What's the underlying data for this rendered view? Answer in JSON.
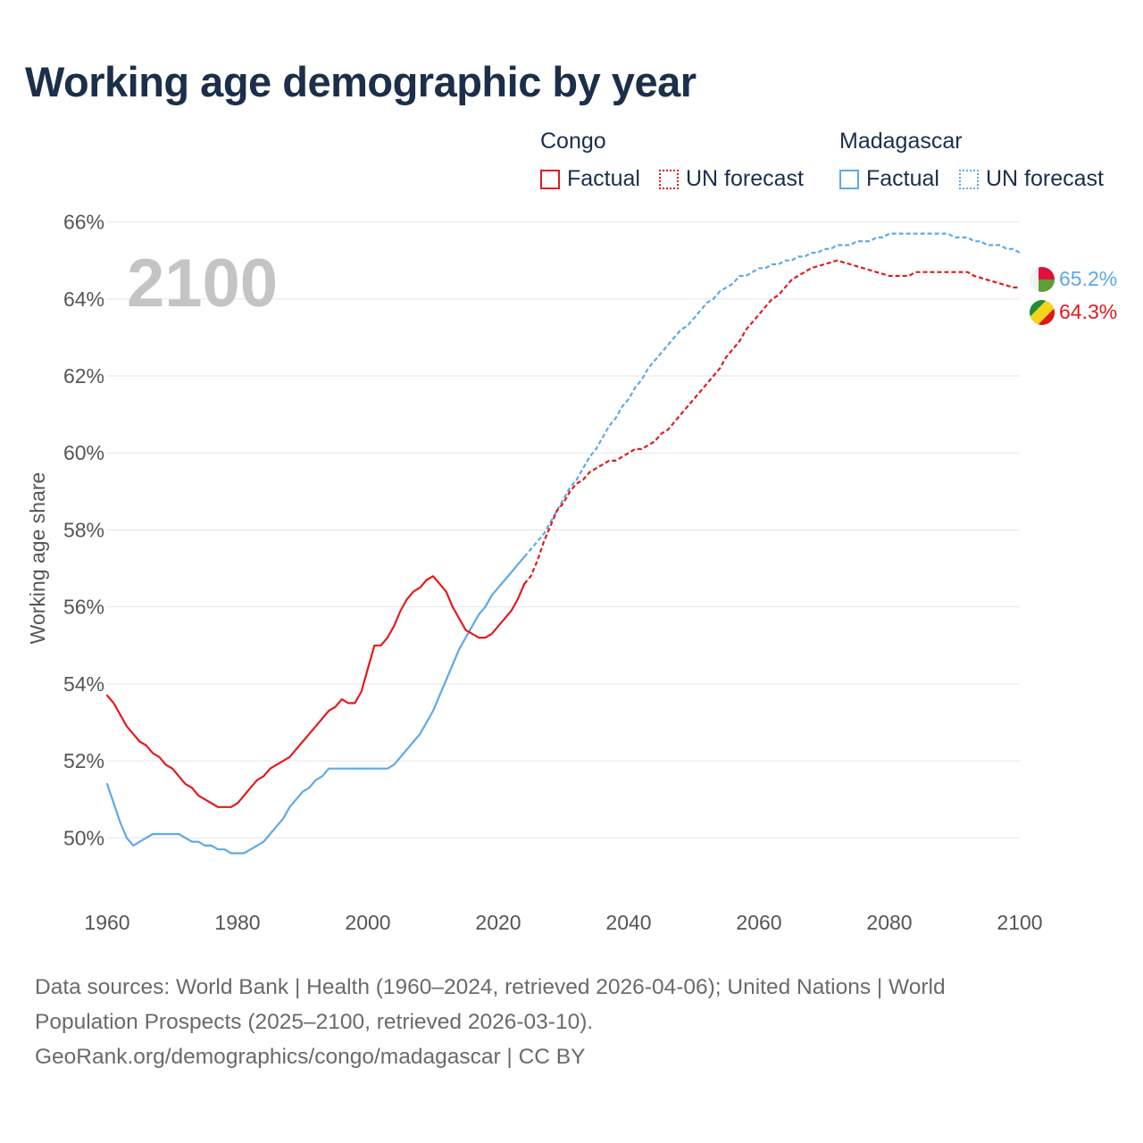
{
  "title": "Working age demographic by year",
  "legend": {
    "groups": [
      {
        "name": "Congo",
        "factual_label": "Factual",
        "forecast_label": "UN forecast",
        "color": "#e31a1c"
      },
      {
        "name": "Madagascar",
        "factual_label": "Factual",
        "forecast_label": "UN forecast",
        "color": "#5fa8e8"
      }
    ]
  },
  "sources": {
    "line1": "Data sources: World Bank | Health (1960–2024, retrieved 2026-04-06); United Nations | World",
    "line2": "Population Prospects (2025–2100, retrieved 2026-03-10).",
    "line3": "GeoRank.org/demographics/congo/madagascar | CC BY"
  },
  "chart_data": {
    "type": "line",
    "title": "Working age demographic by year",
    "xlabel": "",
    "ylabel": "Working age share",
    "current_year": "2100",
    "xlim": [
      1960,
      2100
    ],
    "ylim": [
      48.8,
      66.2
    ],
    "x_ticks": [
      1960,
      1980,
      2000,
      2020,
      2040,
      2060,
      2080,
      2100
    ],
    "x_tick_labels": [
      "1960",
      "1980",
      "2000",
      "2020",
      "2040",
      "2060",
      "2080",
      "2100"
    ],
    "y_ticks": [
      50,
      52,
      54,
      56,
      58,
      60,
      62,
      64,
      66
    ],
    "y_tick_labels": [
      "50%",
      "52%",
      "54%",
      "56%",
      "58%",
      "60%",
      "62%",
      "64%",
      "66%"
    ],
    "grid": true,
    "series": [
      {
        "name": "Congo",
        "color": "#e31a1c",
        "end_label": "64.3%",
        "factual": {
          "x": [
            1960,
            1961,
            1962,
            1963,
            1964,
            1965,
            1966,
            1967,
            1968,
            1969,
            1970,
            1971,
            1972,
            1973,
            1974,
            1975,
            1976,
            1977,
            1978,
            1979,
            1980,
            1981,
            1982,
            1983,
            1984,
            1985,
            1986,
            1987,
            1988,
            1989,
            1990,
            1991,
            1992,
            1993,
            1994,
            1995,
            1996,
            1997,
            1998,
            1999,
            2000,
            2001,
            2002,
            2003,
            2004,
            2005,
            2006,
            2007,
            2008,
            2009,
            2010,
            2011,
            2012,
            2013,
            2014,
            2015,
            2016,
            2017,
            2018,
            2019,
            2020,
            2021,
            2022,
            2023,
            2024
          ],
          "y": [
            53.7,
            53.5,
            53.2,
            52.9,
            52.7,
            52.5,
            52.4,
            52.2,
            52.1,
            51.9,
            51.8,
            51.6,
            51.4,
            51.3,
            51.1,
            51.0,
            50.9,
            50.8,
            50.8,
            50.8,
            50.9,
            51.1,
            51.3,
            51.5,
            51.6,
            51.8,
            51.9,
            52.0,
            52.1,
            52.3,
            52.5,
            52.7,
            52.9,
            53.1,
            53.3,
            53.4,
            53.6,
            53.5,
            53.5,
            53.8,
            54.4,
            55.0,
            55.0,
            55.2,
            55.5,
            55.9,
            56.2,
            56.4,
            56.5,
            56.7,
            56.8,
            56.6,
            56.4,
            56.0,
            55.7,
            55.4,
            55.3,
            55.2,
            55.2,
            55.3,
            55.5,
            55.7,
            55.9,
            56.2,
            56.6
          ]
        },
        "forecast": {
          "x": [
            2024,
            2025,
            2026,
            2027,
            2028,
            2029,
            2030,
            2031,
            2032,
            2033,
            2034,
            2035,
            2036,
            2037,
            2038,
            2039,
            2040,
            2041,
            2042,
            2043,
            2044,
            2045,
            2046,
            2047,
            2048,
            2049,
            2050,
            2051,
            2052,
            2053,
            2054,
            2055,
            2056,
            2057,
            2058,
            2059,
            2060,
            2061,
            2062,
            2063,
            2064,
            2065,
            2066,
            2067,
            2068,
            2069,
            2070,
            2071,
            2072,
            2073,
            2074,
            2075,
            2076,
            2077,
            2078,
            2079,
            2080,
            2081,
            2082,
            2083,
            2084,
            2085,
            2086,
            2087,
            2088,
            2089,
            2090,
            2091,
            2092,
            2093,
            2094,
            2095,
            2096,
            2097,
            2098,
            2099,
            2100
          ],
          "y": [
            56.6,
            56.8,
            57.2,
            57.7,
            58.1,
            58.5,
            58.7,
            59.0,
            59.2,
            59.3,
            59.5,
            59.6,
            59.7,
            59.8,
            59.8,
            59.9,
            60.0,
            60.1,
            60.1,
            60.2,
            60.3,
            60.5,
            60.6,
            60.8,
            61.0,
            61.2,
            61.4,
            61.6,
            61.8,
            62.0,
            62.2,
            62.5,
            62.7,
            62.9,
            63.2,
            63.4,
            63.6,
            63.8,
            64.0,
            64.1,
            64.3,
            64.5,
            64.6,
            64.7,
            64.8,
            64.85,
            64.9,
            64.95,
            65.0,
            64.95,
            64.9,
            64.85,
            64.8,
            64.75,
            64.7,
            64.65,
            64.6,
            64.6,
            64.6,
            64.6,
            64.7,
            64.7,
            64.7,
            64.7,
            64.7,
            64.7,
            64.7,
            64.7,
            64.7,
            64.6,
            64.55,
            64.5,
            64.45,
            64.4,
            64.35,
            64.3,
            64.3
          ]
        }
      },
      {
        "name": "Madagascar",
        "color": "#5fa8e8",
        "end_label": "65.2%",
        "factual": {
          "x": [
            1960,
            1961,
            1962,
            1963,
            1964,
            1965,
            1966,
            1967,
            1968,
            1969,
            1970,
            1971,
            1972,
            1973,
            1974,
            1975,
            1976,
            1977,
            1978,
            1979,
            1980,
            1981,
            1982,
            1983,
            1984,
            1985,
            1986,
            1987,
            1988,
            1989,
            1990,
            1991,
            1992,
            1993,
            1994,
            1995,
            1996,
            1997,
            1998,
            1999,
            2000,
            2001,
            2002,
            2003,
            2004,
            2005,
            2006,
            2007,
            2008,
            2009,
            2010,
            2011,
            2012,
            2013,
            2014,
            2015,
            2016,
            2017,
            2018,
            2019,
            2020,
            2021,
            2022,
            2023,
            2024
          ],
          "y": [
            51.4,
            50.9,
            50.4,
            50.0,
            49.8,
            49.9,
            50.0,
            50.1,
            50.1,
            50.1,
            50.1,
            50.1,
            50.0,
            49.9,
            49.9,
            49.8,
            49.8,
            49.7,
            49.7,
            49.6,
            49.6,
            49.6,
            49.7,
            49.8,
            49.9,
            50.1,
            50.3,
            50.5,
            50.8,
            51.0,
            51.2,
            51.3,
            51.5,
            51.6,
            51.8,
            51.8,
            51.8,
            51.8,
            51.8,
            51.8,
            51.8,
            51.8,
            51.8,
            51.8,
            51.9,
            52.1,
            52.3,
            52.5,
            52.7,
            53.0,
            53.3,
            53.7,
            54.1,
            54.5,
            54.9,
            55.2,
            55.5,
            55.8,
            56.0,
            56.3,
            56.5,
            56.7,
            56.9,
            57.1,
            57.3
          ]
        },
        "forecast": {
          "x": [
            2024,
            2025,
            2026,
            2027,
            2028,
            2029,
            2030,
            2031,
            2032,
            2033,
            2034,
            2035,
            2036,
            2037,
            2038,
            2039,
            2040,
            2041,
            2042,
            2043,
            2044,
            2045,
            2046,
            2047,
            2048,
            2049,
            2050,
            2051,
            2052,
            2053,
            2054,
            2055,
            2056,
            2057,
            2058,
            2059,
            2060,
            2061,
            2062,
            2063,
            2064,
            2065,
            2066,
            2067,
            2068,
            2069,
            2070,
            2071,
            2072,
            2073,
            2074,
            2075,
            2076,
            2077,
            2078,
            2079,
            2080,
            2081,
            2082,
            2083,
            2084,
            2085,
            2086,
            2087,
            2088,
            2089,
            2090,
            2091,
            2092,
            2093,
            2094,
            2095,
            2096,
            2097,
            2098,
            2099,
            2100
          ],
          "y": [
            57.3,
            57.5,
            57.7,
            57.9,
            58.2,
            58.5,
            58.8,
            59.1,
            59.3,
            59.6,
            59.9,
            60.1,
            60.4,
            60.7,
            60.9,
            61.2,
            61.4,
            61.7,
            61.9,
            62.2,
            62.4,
            62.6,
            62.8,
            63.0,
            63.2,
            63.3,
            63.5,
            63.7,
            63.9,
            64.0,
            64.2,
            64.3,
            64.4,
            64.6,
            64.6,
            64.7,
            64.8,
            64.8,
            64.9,
            64.9,
            65.0,
            65.0,
            65.1,
            65.1,
            65.2,
            65.2,
            65.3,
            65.3,
            65.4,
            65.4,
            65.4,
            65.5,
            65.5,
            65.5,
            65.6,
            65.6,
            65.7,
            65.7,
            65.7,
            65.7,
            65.7,
            65.7,
            65.7,
            65.7,
            65.7,
            65.7,
            65.6,
            65.6,
            65.6,
            65.5,
            65.5,
            65.4,
            65.4,
            65.4,
            65.3,
            65.3,
            65.2
          ]
        }
      }
    ]
  }
}
